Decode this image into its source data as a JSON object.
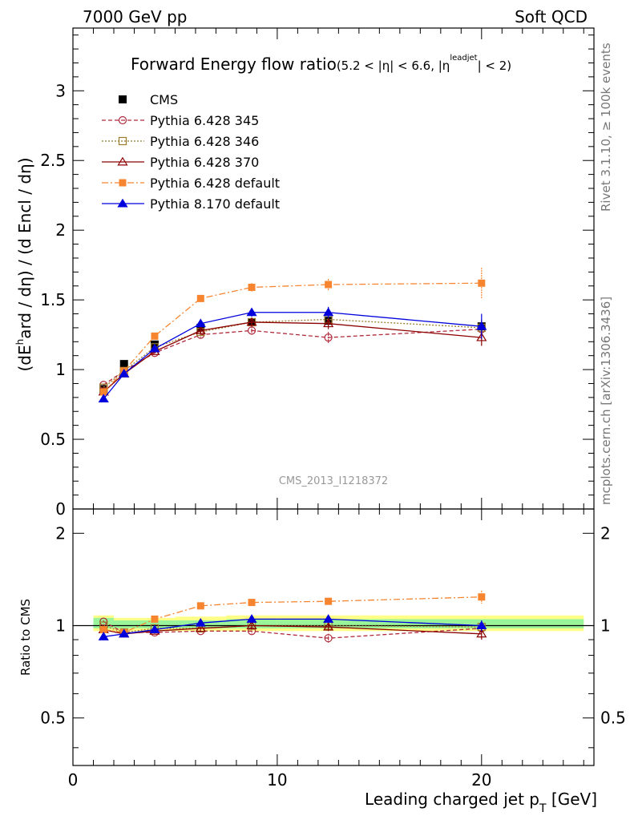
{
  "header": {
    "left": "7000 GeV pp",
    "right": "Soft QCD"
  },
  "side_labels": {
    "rivet": "Rivet 3.1.10, ≥ 100k events",
    "mcplots": "mcplots.cern.ch [arXiv:1306.3436]"
  },
  "watermark": "CMS_2013_I1218372",
  "colors": {
    "cms": "#000000",
    "p345": "#b02a3c",
    "p346": "#9b7c2e",
    "p370": "#8b0000",
    "pdef": "#f7852f",
    "p8": "#0000dd",
    "band_green": "#9af59a",
    "band_yellow": "#ffff88"
  },
  "chart_data": [
    {
      "type": "line",
      "title": "Forward Energy flow ratio",
      "title_cut_parts": [
        "(5.2 < |η| < 6.6, |η",
        "leadjet",
        "| < 2)"
      ],
      "ylabel_parts": [
        "(dE",
        "h",
        "ard / dη) / (d E",
        "",
        "ncl / dη)"
      ],
      "xlabel_main": "Leading charged jet p",
      "xlabel_sub": "T",
      "xlabel_unit": " [GeV]",
      "xlim": [
        0,
        25.5
      ],
      "ylim": [
        0,
        3.45
      ],
      "y_ticks": [
        "0",
        "0.5",
        "1",
        "1.5",
        "2",
        "2.5",
        "3"
      ],
      "legend_position": "top-left",
      "series": [
        {
          "name": "CMS",
          "style": "cms",
          "x": [
            1.5,
            2.5,
            4.0,
            6.25,
            8.75,
            12.5,
            20.0
          ],
          "y": [
            0.86,
            1.04,
            1.18,
            1.3,
            1.34,
            1.35,
            1.31
          ],
          "err": [
            0.02,
            0.02,
            0.02,
            0.02,
            0.02,
            0.02,
            0.02
          ]
        },
        {
          "name": "Pythia 6.428 345",
          "style": "p345",
          "x": [
            1.5,
            2.5,
            4.0,
            6.25,
            8.75,
            12.5,
            20.0
          ],
          "y": [
            0.89,
            0.99,
            1.12,
            1.25,
            1.28,
            1.23,
            1.29
          ],
          "err": [
            0.01,
            0.01,
            0.01,
            0.02,
            0.03,
            0.04,
            0.06
          ]
        },
        {
          "name": "Pythia 6.428 346",
          "style": "p346",
          "x": [
            1.5,
            2.5,
            4.0,
            6.25,
            8.75,
            12.5,
            20.0
          ],
          "y": [
            0.87,
            0.99,
            1.16,
            1.27,
            1.34,
            1.36,
            1.3
          ],
          "err": [
            0.01,
            0.01,
            0.01,
            0.02,
            0.03,
            0.04,
            0.06
          ]
        },
        {
          "name": "Pythia 6.428 370",
          "style": "p370",
          "x": [
            1.5,
            2.5,
            4.0,
            6.25,
            8.75,
            12.5,
            20.0
          ],
          "y": [
            0.84,
            0.97,
            1.13,
            1.28,
            1.34,
            1.33,
            1.23
          ],
          "err": [
            0.01,
            0.01,
            0.01,
            0.02,
            0.03,
            0.04,
            0.06
          ]
        },
        {
          "name": "Pythia 6.428 default",
          "style": "pdef",
          "x": [
            1.5,
            2.5,
            4.0,
            6.25,
            8.75,
            12.5,
            20.0
          ],
          "y": [
            0.84,
            0.99,
            1.24,
            1.51,
            1.59,
            1.61,
            1.62
          ],
          "err": [
            0.01,
            0.01,
            0.015,
            0.02,
            0.03,
            0.04,
            0.11
          ]
        },
        {
          "name": "Pythia 8.170 default",
          "style": "p8",
          "x": [
            1.5,
            2.5,
            4.0,
            6.25,
            8.75,
            12.5,
            20.0
          ],
          "y": [
            0.79,
            0.97,
            1.15,
            1.33,
            1.41,
            1.41,
            1.31
          ],
          "err": [
            0.01,
            0.01,
            0.015,
            0.02,
            0.03,
            0.04,
            0.09
          ]
        }
      ]
    },
    {
      "type": "line",
      "ylabel": "Ratio to CMS",
      "scale": "log",
      "xlim": [
        0,
        25.5
      ],
      "ylim": [
        0.35,
        2.4
      ],
      "x_ticks": [
        "0",
        "10",
        "20"
      ],
      "y_ticks": [
        "0.5",
        "1",
        "2"
      ],
      "reference_line": 1,
      "bands": {
        "x_edges": [
          1,
          2,
          3,
          5,
          7.5,
          10,
          15,
          25
        ],
        "yellow": [
          [
            0.96,
            1.08
          ],
          [
            0.96,
            1.06
          ],
          [
            0.96,
            1.06
          ],
          [
            0.96,
            1.07
          ],
          [
            0.96,
            1.08
          ],
          [
            0.96,
            1.08
          ],
          [
            0.96,
            1.08
          ]
        ],
        "green": [
          [
            0.98,
            1.06
          ],
          [
            0.98,
            1.04
          ],
          [
            0.98,
            1.04
          ],
          [
            0.98,
            1.04
          ],
          [
            0.98,
            1.05
          ],
          [
            0.98,
            1.05
          ],
          [
            0.98,
            1.05
          ]
        ]
      },
      "series": [
        {
          "name": "Pythia 6.428 345",
          "style": "p345",
          "x": [
            1.5,
            2.5,
            4.0,
            6.25,
            8.75,
            12.5,
            20.0
          ],
          "y": [
            1.03,
            0.95,
            0.95,
            0.96,
            0.96,
            0.91,
            0.98
          ],
          "err": [
            0.01,
            0.01,
            0.01,
            0.01,
            0.02,
            0.03,
            0.04
          ]
        },
        {
          "name": "Pythia 6.428 346",
          "style": "p346",
          "x": [
            1.5,
            2.5,
            4.0,
            6.25,
            8.75,
            12.5,
            20.0
          ],
          "y": [
            1.0,
            0.95,
            0.98,
            0.98,
            1.0,
            1.0,
            0.99
          ],
          "err": [
            0.01,
            0.01,
            0.01,
            0.01,
            0.02,
            0.03,
            0.04
          ]
        },
        {
          "name": "Pythia 6.428 370",
          "style": "p370",
          "x": [
            1.5,
            2.5,
            4.0,
            6.25,
            8.75,
            12.5,
            20.0
          ],
          "y": [
            0.97,
            0.94,
            0.96,
            0.98,
            1.0,
            0.99,
            0.94
          ],
          "err": [
            0.01,
            0.01,
            0.01,
            0.01,
            0.02,
            0.03,
            0.04
          ]
        },
        {
          "name": "Pythia 6.428 default",
          "style": "pdef",
          "x": [
            1.5,
            2.5,
            4.0,
            6.25,
            8.75,
            12.5,
            20.0
          ],
          "y": [
            0.97,
            0.95,
            1.05,
            1.16,
            1.19,
            1.2,
            1.24
          ],
          "err": [
            0.01,
            0.01,
            0.01,
            0.01,
            0.02,
            0.03,
            0.06
          ]
        },
        {
          "name": "Pythia 8.170 default",
          "style": "p8",
          "x": [
            1.5,
            2.5,
            4.0,
            6.25,
            8.75,
            12.5,
            20.0
          ],
          "y": [
            0.92,
            0.94,
            0.97,
            1.02,
            1.05,
            1.05,
            1.0
          ],
          "err": [
            0.01,
            0.01,
            0.01,
            0.01,
            0.02,
            0.03,
            0.04
          ]
        }
      ]
    }
  ]
}
